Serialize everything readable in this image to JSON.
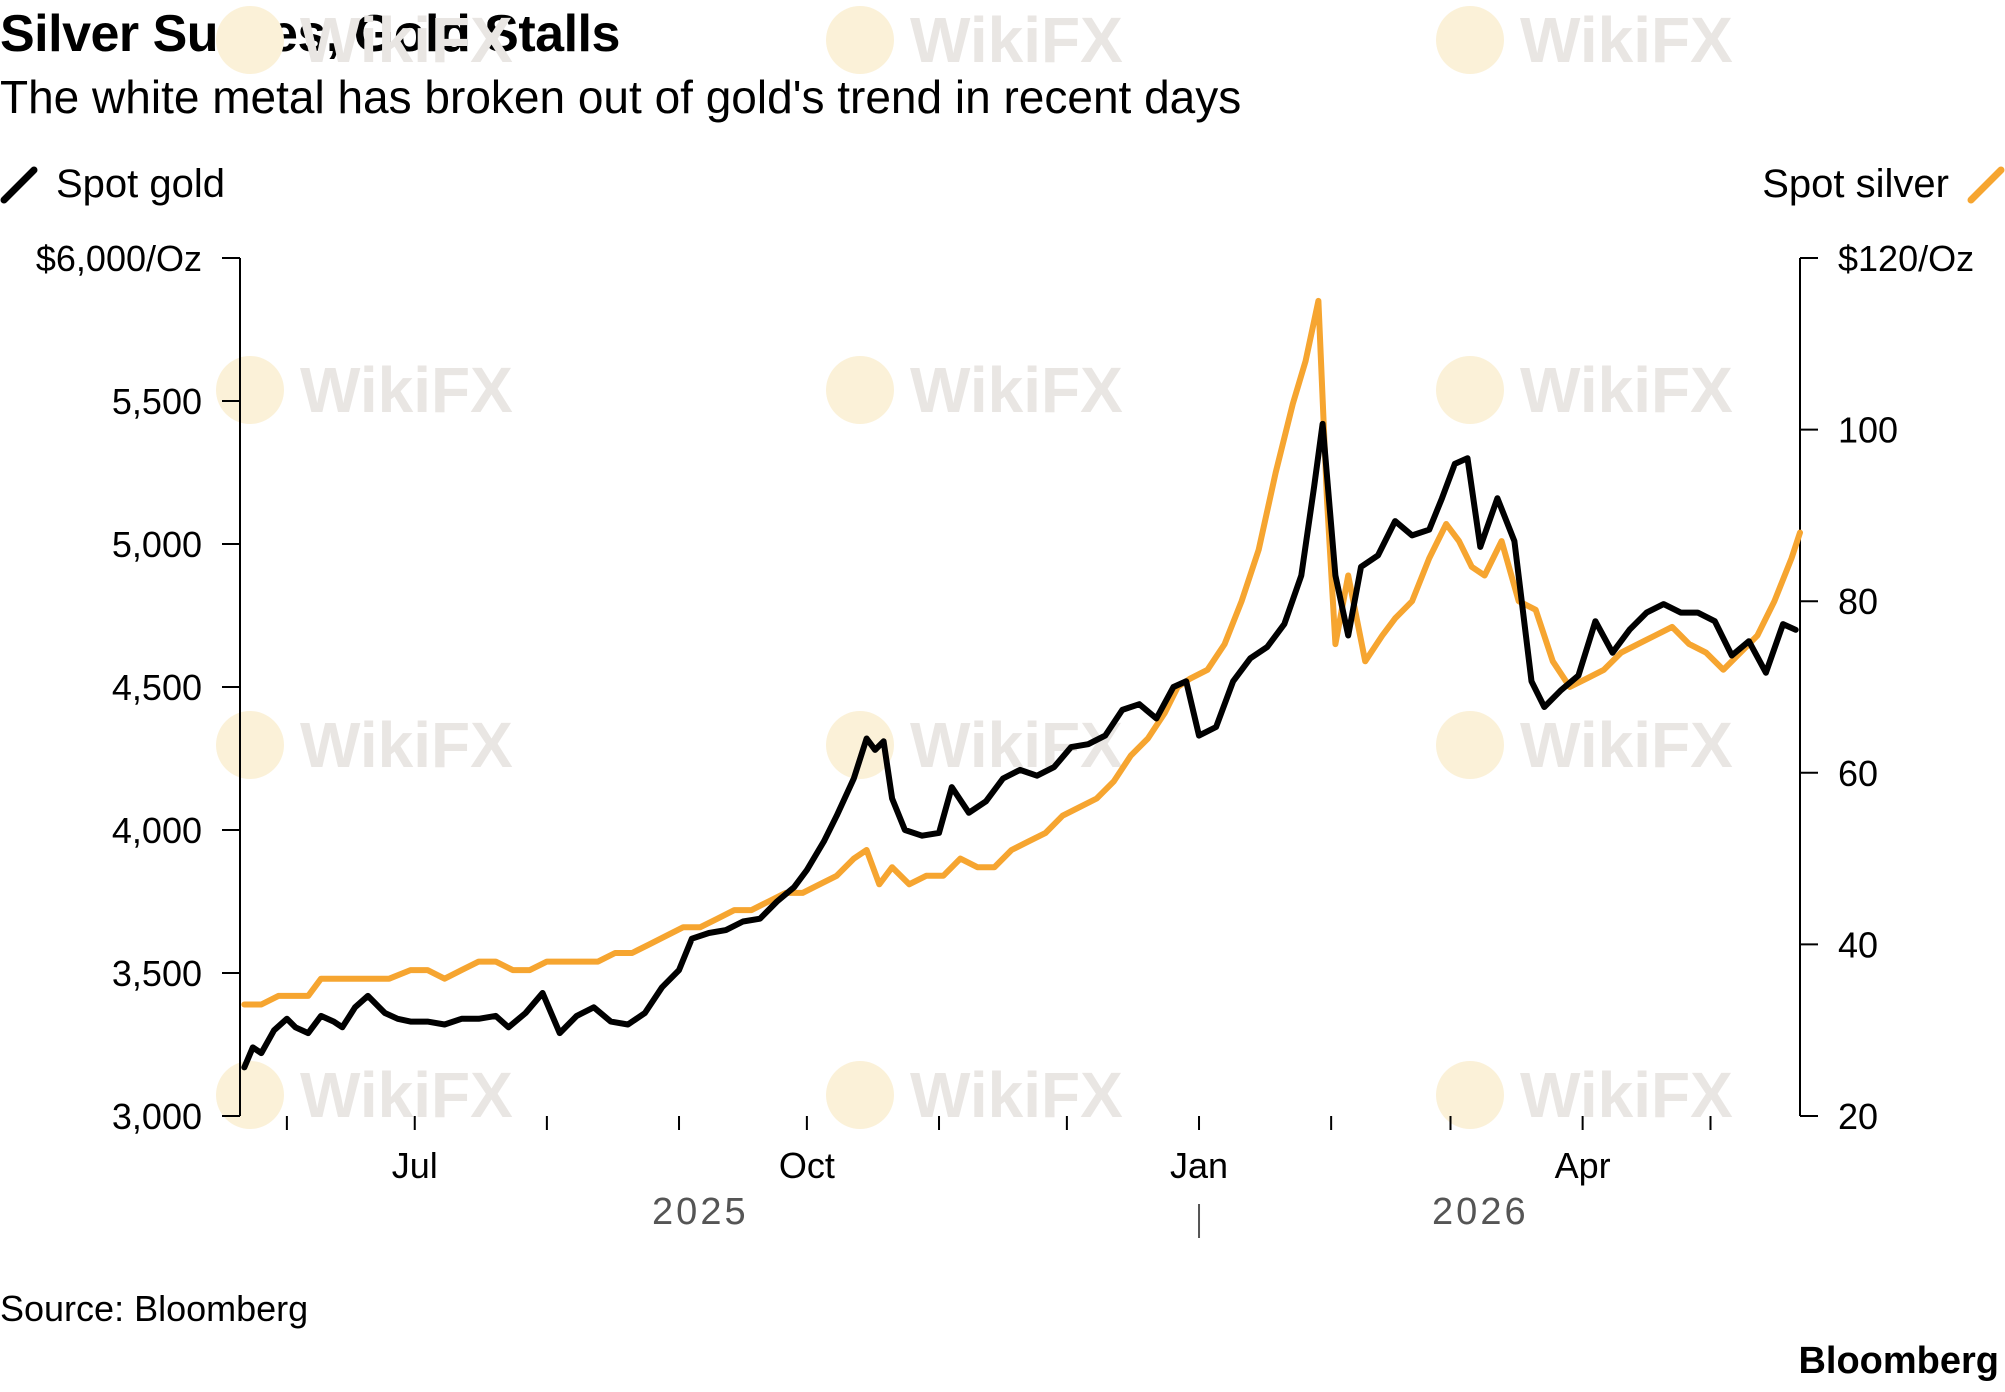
{
  "title": "Silver Surges, Gold Stalls",
  "subtitle": "The white metal has broken out of gold's trend in recent days",
  "source": "Source: Bloomberg",
  "brand": "Bloomberg",
  "watermark": "WikiFX",
  "colors": {
    "gold": "#000000",
    "silver": "#f6a530",
    "axis": "#000000",
    "year_text": "#555555",
    "watermark": "#e9e6e3"
  },
  "chart_data": {
    "type": "line",
    "title": "Silver Surges, Gold Stalls",
    "subtitle": "The white metal has broken out of gold's trend in recent days",
    "legend": {
      "left": "Spot gold",
      "right": "Spot silver"
    },
    "x_range": [
      "2025-05-21",
      "2026-05-22"
    ],
    "x_ticks": [
      {
        "date": "2025-06-01",
        "label": ""
      },
      {
        "date": "2025-07-01",
        "label": "Jul"
      },
      {
        "date": "2025-08-01",
        "label": ""
      },
      {
        "date": "2025-09-01",
        "label": ""
      },
      {
        "date": "2025-10-01",
        "label": "Oct"
      },
      {
        "date": "2025-11-01",
        "label": ""
      },
      {
        "date": "2025-12-01",
        "label": ""
      },
      {
        "date": "2026-01-01",
        "label": "Jan"
      },
      {
        "date": "2026-02-01",
        "label": ""
      },
      {
        "date": "2026-03-01",
        "label": ""
      },
      {
        "date": "2026-04-01",
        "label": "Apr"
      },
      {
        "date": "2026-05-01",
        "label": ""
      }
    ],
    "year_labels": [
      {
        "label": "2025",
        "date": "2025-09-06"
      },
      {
        "label": "2026",
        "date": "2026-03-08"
      }
    ],
    "year_divider": "2026-01-01",
    "y_left": {
      "label": "$6,000/Oz",
      "min": 3000,
      "max": 6000,
      "ticks": [
        {
          "v": 3000,
          "label": "3,000"
        },
        {
          "v": 3500,
          "label": "3,500"
        },
        {
          "v": 4000,
          "label": "4,000"
        },
        {
          "v": 4500,
          "label": "4,500"
        },
        {
          "v": 5000,
          "label": "5,000"
        },
        {
          "v": 5500,
          "label": "5,500"
        },
        {
          "v": 6000,
          "label": "$6,000/Oz"
        }
      ]
    },
    "y_right": {
      "label": "$120/Oz",
      "min": 20,
      "max": 120,
      "ticks": [
        {
          "v": 20,
          "label": "20"
        },
        {
          "v": 40,
          "label": "40"
        },
        {
          "v": 60,
          "label": "60"
        },
        {
          "v": 80,
          "label": "80"
        },
        {
          "v": 100,
          "label": "100"
        },
        {
          "v": 120,
          "label": "$120/Oz"
        }
      ]
    },
    "series": [
      {
        "name": "Spot gold",
        "axis": "left",
        "x": [
          "2025-05-22",
          "2025-05-24",
          "2025-05-26",
          "2025-05-29",
          "2025-06-01",
          "2025-06-03",
          "2025-06-06",
          "2025-06-09",
          "2025-06-12",
          "2025-06-14",
          "2025-06-17",
          "2025-06-20",
          "2025-06-24",
          "2025-06-27",
          "2025-06-30",
          "2025-07-04",
          "2025-07-08",
          "2025-07-12",
          "2025-07-16",
          "2025-07-20",
          "2025-07-23",
          "2025-07-27",
          "2025-07-31",
          "2025-08-04",
          "2025-08-08",
          "2025-08-12",
          "2025-08-16",
          "2025-08-20",
          "2025-08-24",
          "2025-08-28",
          "2025-09-01",
          "2025-09-04",
          "2025-09-08",
          "2025-09-12",
          "2025-09-16",
          "2025-09-20",
          "2025-09-24",
          "2025-09-28",
          "2025-10-01",
          "2025-10-05",
          "2025-10-08",
          "2025-10-12",
          "2025-10-15",
          "2025-10-17",
          "2025-10-19",
          "2025-10-21",
          "2025-10-24",
          "2025-10-28",
          "2025-11-01",
          "2025-11-04",
          "2025-11-08",
          "2025-11-12",
          "2025-11-16",
          "2025-11-20",
          "2025-11-24",
          "2025-11-28",
          "2025-12-02",
          "2025-12-06",
          "2025-12-10",
          "2025-12-14",
          "2025-12-18",
          "2025-12-22",
          "2025-12-26",
          "2025-12-29",
          "2026-01-01",
          "2026-01-05",
          "2026-01-09",
          "2026-01-13",
          "2026-01-17",
          "2026-01-21",
          "2026-01-25",
          "2026-01-28",
          "2026-01-30",
          "2026-02-02",
          "2026-02-05",
          "2026-02-08",
          "2026-02-12",
          "2026-02-16",
          "2026-02-20",
          "2026-02-24",
          "2026-02-27",
          "2026-03-02",
          "2026-03-05",
          "2026-03-08",
          "2026-03-12",
          "2026-03-16",
          "2026-03-20",
          "2026-03-23",
          "2026-03-27",
          "2026-03-31",
          "2026-04-04",
          "2026-04-08",
          "2026-04-12",
          "2026-04-16",
          "2026-04-20",
          "2026-04-24",
          "2026-04-28",
          "2026-05-02",
          "2026-05-06",
          "2026-05-10",
          "2026-05-14",
          "2026-05-18",
          "2026-05-21"
        ],
        "values": [
          3170,
          3240,
          3220,
          3300,
          3340,
          3310,
          3290,
          3350,
          3330,
          3310,
          3380,
          3420,
          3360,
          3340,
          3330,
          3330,
          3320,
          3340,
          3340,
          3350,
          3310,
          3360,
          3430,
          3290,
          3350,
          3380,
          3330,
          3320,
          3360,
          3450,
          3510,
          3620,
          3640,
          3650,
          3680,
          3690,
          3750,
          3800,
          3860,
          3960,
          4050,
          4180,
          4320,
          4280,
          4310,
          4110,
          4000,
          3980,
          3990,
          4150,
          4060,
          4100,
          4180,
          4210,
          4190,
          4220,
          4290,
          4300,
          4330,
          4420,
          4440,
          4390,
          4500,
          4520,
          4330,
          4360,
          4520,
          4600,
          4640,
          4720,
          4890,
          5200,
          5420,
          4890,
          4680,
          4920,
          4960,
          5080,
          5030,
          5050,
          5160,
          5280,
          5300,
          4990,
          5160,
          5010,
          4520,
          4430,
          4490,
          4540,
          4730,
          4620,
          4700,
          4760,
          4790,
          4760,
          4760,
          4730,
          4610,
          4660,
          4550,
          4720,
          4700
        ],
        "color": "#000000"
      },
      {
        "name": "Spot silver",
        "axis": "right",
        "x": [
          "2025-05-22",
          "2025-05-26",
          "2025-05-30",
          "2025-06-03",
          "2025-06-06",
          "2025-06-09",
          "2025-06-12",
          "2025-06-16",
          "2025-06-20",
          "2025-06-25",
          "2025-06-30",
          "2025-07-04",
          "2025-07-08",
          "2025-07-12",
          "2025-07-16",
          "2025-07-20",
          "2025-07-24",
          "2025-07-28",
          "2025-08-01",
          "2025-08-05",
          "2025-08-09",
          "2025-08-13",
          "2025-08-17",
          "2025-08-21",
          "2025-08-25",
          "2025-08-29",
          "2025-09-02",
          "2025-09-06",
          "2025-09-10",
          "2025-09-14",
          "2025-09-18",
          "2025-09-22",
          "2025-09-26",
          "2025-09-30",
          "2025-10-04",
          "2025-10-08",
          "2025-10-12",
          "2025-10-15",
          "2025-10-18",
          "2025-10-21",
          "2025-10-25",
          "2025-10-29",
          "2025-11-02",
          "2025-11-06",
          "2025-11-10",
          "2025-11-14",
          "2025-11-18",
          "2025-11-22",
          "2025-11-26",
          "2025-11-30",
          "2025-12-04",
          "2025-12-08",
          "2025-12-12",
          "2025-12-16",
          "2025-12-20",
          "2025-12-24",
          "2025-12-27",
          "2025-12-30",
          "2026-01-03",
          "2026-01-07",
          "2026-01-11",
          "2026-01-15",
          "2026-01-19",
          "2026-01-23",
          "2026-01-26",
          "2026-01-29",
          "2026-01-31",
          "2026-02-02",
          "2026-02-05",
          "2026-02-09",
          "2026-02-13",
          "2026-02-16",
          "2026-02-20",
          "2026-02-24",
          "2026-02-28",
          "2026-03-03",
          "2026-03-06",
          "2026-03-09",
          "2026-03-13",
          "2026-03-17",
          "2026-03-21",
          "2026-03-25",
          "2026-03-29",
          "2026-04-02",
          "2026-04-06",
          "2026-04-10",
          "2026-04-14",
          "2026-04-18",
          "2026-04-22",
          "2026-04-26",
          "2026-04-30",
          "2026-05-04",
          "2026-05-08",
          "2026-05-12",
          "2026-05-16",
          "2026-05-20",
          "2026-05-22"
        ],
        "values": [
          33,
          33,
          34,
          34,
          34,
          36,
          36,
          36,
          36,
          36,
          37,
          37,
          36,
          37,
          38,
          38,
          37,
          37,
          38,
          38,
          38,
          38,
          39,
          39,
          40,
          41,
          42,
          42,
          43,
          44,
          44,
          45,
          46,
          46,
          47,
          48,
          50,
          51,
          47,
          49,
          47,
          48,
          48,
          50,
          49,
          49,
          51,
          52,
          53,
          55,
          56,
          57,
          59,
          62,
          64,
          67,
          70,
          71,
          72,
          75,
          80,
          86,
          95,
          103,
          108,
          115,
          92,
          75,
          83,
          73,
          76,
          78,
          80,
          85,
          89,
          87,
          84,
          83,
          87,
          80,
          79,
          73,
          70,
          71,
          72,
          74,
          75,
          76,
          77,
          75,
          74,
          72,
          74,
          76,
          80,
          85,
          88
        ],
        "color": "#f6a530"
      }
    ]
  }
}
